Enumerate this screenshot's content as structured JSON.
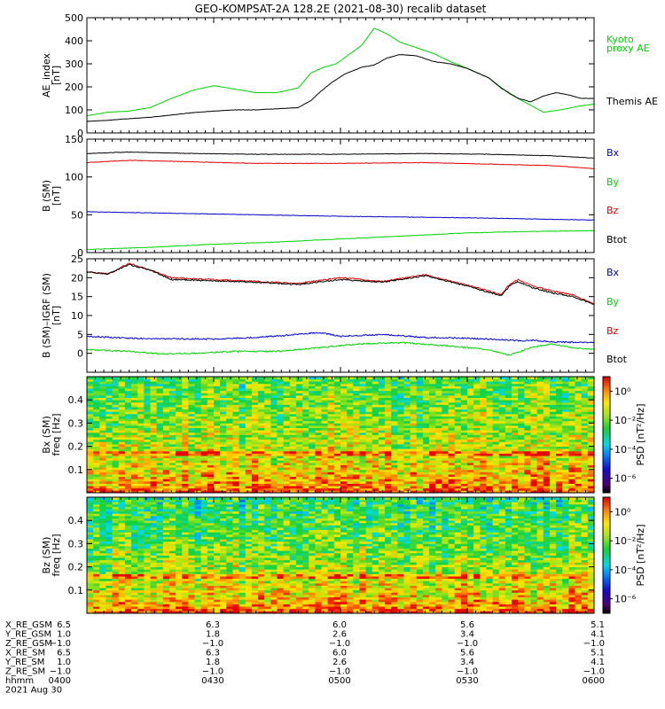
{
  "colors": {
    "axis": "#000000",
    "kyoto": "#00d200",
    "themis": "#000000",
    "bx": "#0000c8",
    "by": "#00d200",
    "bz": "#e00000",
    "btot": "#000000"
  },
  "figure": {
    "title": "GEO-KOMPSAT-2A 128.2E (2021-08-30) recalib dataset"
  },
  "chart_data": [
    {
      "type": "line",
      "title": "GEO-KOMPSAT-2A 128.2E (2021-08-30) recalib dataset",
      "ylabel": [
        "AE_index",
        "[nT]"
      ],
      "ylim": [
        0,
        500
      ],
      "yticks": [
        "0",
        "100",
        "200",
        "300",
        "400",
        "500"
      ],
      "xlim": [
        0,
        120
      ],
      "xunit": "minutes since 04:00 UT",
      "series": [
        {
          "name": "Kyoto proxy AE",
          "color": "#00d200",
          "legend": [
            "Kyoto",
            "proxy AE"
          ],
          "points": [
            [
              0,
              75
            ],
            [
              5,
              90
            ],
            [
              10,
              95
            ],
            [
              15,
              110
            ],
            [
              20,
              150
            ],
            [
              25,
              185
            ],
            [
              30,
              205
            ],
            [
              35,
              190
            ],
            [
              40,
              175
            ],
            [
              45,
              175
            ],
            [
              50,
              195
            ],
            [
              53,
              260
            ],
            [
              56,
              285
            ],
            [
              59,
              300
            ],
            [
              62,
              340
            ],
            [
              65,
              380
            ],
            [
              68,
              455
            ],
            [
              71,
              430
            ],
            [
              74,
              395
            ],
            [
              78,
              370
            ],
            [
              82,
              345
            ],
            [
              86,
              310
            ],
            [
              90,
              280
            ],
            [
              95,
              240
            ],
            [
              100,
              170
            ],
            [
              105,
              120
            ],
            [
              108,
              90
            ],
            [
              112,
              100
            ],
            [
              116,
              115
            ],
            [
              120,
              125
            ]
          ]
        },
        {
          "name": "Themis AE",
          "color": "#000000",
          "legend": [
            "Themis AE"
          ],
          "points": [
            [
              0,
              50
            ],
            [
              5,
              55
            ],
            [
              10,
              62
            ],
            [
              15,
              68
            ],
            [
              20,
              78
            ],
            [
              25,
              88
            ],
            [
              30,
              95
            ],
            [
              35,
              100
            ],
            [
              40,
              100
            ],
            [
              45,
              105
            ],
            [
              50,
              110
            ],
            [
              53,
              140
            ],
            [
              55,
              175
            ],
            [
              58,
              220
            ],
            [
              61,
              255
            ],
            [
              65,
              285
            ],
            [
              68,
              295
            ],
            [
              71,
              325
            ],
            [
              74,
              340
            ],
            [
              78,
              335
            ],
            [
              82,
              310
            ],
            [
              86,
              300
            ],
            [
              90,
              280
            ],
            [
              95,
              240
            ],
            [
              98,
              195
            ],
            [
              102,
              150
            ],
            [
              105,
              135
            ],
            [
              108,
              160
            ],
            [
              111,
              175
            ],
            [
              114,
              165
            ],
            [
              117,
              150
            ],
            [
              120,
              150
            ]
          ]
        }
      ]
    },
    {
      "type": "line",
      "ylabel": [
        "B (SM)",
        "[nT]"
      ],
      "ylim": [
        0,
        150
      ],
      "yticks": [
        "0",
        "50",
        "100",
        "150"
      ],
      "xlim": [
        0,
        120
      ],
      "series": [
        {
          "name": "Bx",
          "color": "#0000c8",
          "points": [
            [
              0,
              54
            ],
            [
              10,
              53
            ],
            [
              30,
              51
            ],
            [
              60,
              48
            ],
            [
              90,
              46
            ],
            [
              120,
              43
            ]
          ]
        },
        {
          "name": "By",
          "color": "#00d200",
          "points": [
            [
              0,
              4
            ],
            [
              15,
              7
            ],
            [
              30,
              11
            ],
            [
              45,
              14
            ],
            [
              60,
              18
            ],
            [
              75,
              22
            ],
            [
              90,
              26
            ],
            [
              105,
              28
            ],
            [
              120,
              29
            ]
          ]
        },
        {
          "name": "Bz",
          "color": "#e00000",
          "points": [
            [
              0,
              119
            ],
            [
              10,
              122
            ],
            [
              25,
              120
            ],
            [
              40,
              118
            ],
            [
              60,
              118
            ],
            [
              80,
              119
            ],
            [
              95,
              117
            ],
            [
              110,
              115
            ],
            [
              120,
              111
            ]
          ]
        },
        {
          "name": "Btot",
          "color": "#000000",
          "points": [
            [
              0,
              131
            ],
            [
              10,
              133
            ],
            [
              25,
              131
            ],
            [
              40,
              130
            ],
            [
              60,
              130
            ],
            [
              80,
              131
            ],
            [
              95,
              130
            ],
            [
              110,
              128
            ],
            [
              120,
              125
            ]
          ]
        }
      ],
      "legend": [
        "Bx",
        "By",
        "Bz",
        "Btot"
      ]
    },
    {
      "type": "line",
      "ylabel": [
        "B (SM)–IGRF (SM)",
        "[nT]"
      ],
      "ylim": [
        -5,
        25
      ],
      "yticks": [
        "0",
        "5",
        "10",
        "15",
        "20",
        "25"
      ],
      "xlim": [
        0,
        120
      ],
      "series": [
        {
          "name": "Bx",
          "color": "#0000c8",
          "points": [
            [
              0,
              4.5
            ],
            [
              10,
              4
            ],
            [
              20,
              3.8
            ],
            [
              30,
              3.8
            ],
            [
              40,
              4.2
            ],
            [
              50,
              5
            ],
            [
              55,
              5.5
            ],
            [
              60,
              4.5
            ],
            [
              70,
              5
            ],
            [
              80,
              4.2
            ],
            [
              90,
              4
            ],
            [
              100,
              3.5
            ],
            [
              103,
              3.3
            ],
            [
              105,
              3.5
            ],
            [
              110,
              3
            ],
            [
              120,
              2.8
            ]
          ]
        },
        {
          "name": "By",
          "color": "#00d200",
          "points": [
            [
              0,
              1
            ],
            [
              10,
              0.5
            ],
            [
              18,
              -0.2
            ],
            [
              25,
              0
            ],
            [
              35,
              0.5
            ],
            [
              45,
              0.5
            ],
            [
              55,
              1.5
            ],
            [
              65,
              2.5
            ],
            [
              75,
              2.8
            ],
            [
              85,
              2
            ],
            [
              95,
              1
            ],
            [
              100,
              -0.5
            ],
            [
              105,
              1.5
            ],
            [
              110,
              2.5
            ],
            [
              115,
              1.5
            ],
            [
              120,
              1
            ]
          ]
        },
        {
          "name": "Bz",
          "color": "#e00000",
          "points": [
            [
              0,
              21.5
            ],
            [
              5,
              21
            ],
            [
              10,
              23.8
            ],
            [
              15,
              22
            ],
            [
              20,
              20
            ],
            [
              30,
              19.5
            ],
            [
              40,
              19
            ],
            [
              50,
              18.5
            ],
            [
              60,
              20
            ],
            [
              70,
              19
            ],
            [
              80,
              20.8
            ],
            [
              90,
              18
            ],
            [
              95,
              16.5
            ],
            [
              98,
              15.5
            ],
            [
              100,
              18.2
            ],
            [
              102,
              19.5
            ],
            [
              105,
              18
            ],
            [
              110,
              16.5
            ],
            [
              115,
              15.5
            ],
            [
              120,
              13
            ]
          ]
        },
        {
          "name": "Btot",
          "color": "#000000",
          "points": [
            [
              0,
              21.5
            ],
            [
              5,
              21
            ],
            [
              10,
              23.5
            ],
            [
              15,
              22
            ],
            [
              20,
              19.5
            ],
            [
              30,
              19.2
            ],
            [
              40,
              18.8
            ],
            [
              50,
              18.2
            ],
            [
              60,
              19.5
            ],
            [
              70,
              18.8
            ],
            [
              80,
              20.5
            ],
            [
              90,
              17.8
            ],
            [
              95,
              16.2
            ],
            [
              98,
              15.2
            ],
            [
              100,
              17.8
            ],
            [
              102,
              19
            ],
            [
              105,
              17.5
            ],
            [
              110,
              16
            ],
            [
              115,
              15
            ],
            [
              120,
              13
            ]
          ]
        }
      ],
      "legend": [
        "Bx",
        "By",
        "Bz",
        "Btot"
      ]
    },
    {
      "type": "heatmap",
      "ylabel": [
        "Bx (SM)",
        "freq [Hz]"
      ],
      "ylim": [
        0,
        0.5
      ],
      "yticks": [
        "0.1",
        "0.2",
        "0.3",
        "0.4"
      ],
      "xlim": [
        0,
        120
      ],
      "colorbar": {
        "label": "PSD [nT²/Hz]",
        "ticks": [
          "10⁰",
          "10⁻²",
          "10⁻⁴",
          "10⁻⁶"
        ],
        "log_range": [
          -7,
          1
        ]
      },
      "time_bins": 80,
      "freq_bins": 50,
      "noise_seed": 7,
      "low_freq_log_psd": 1.2,
      "high_freq_log_psd": -2.3,
      "spectral_line_hz": 0.17
    },
    {
      "type": "heatmap",
      "ylabel": [
        "Bz (SM)",
        "freq [Hz]"
      ],
      "ylim": [
        0,
        0.5
      ],
      "yticks": [
        "0.1",
        "0.2",
        "0.3",
        "0.4"
      ],
      "xlim": [
        0,
        120
      ],
      "colorbar": {
        "label": "PSD [nT²/Hz]",
        "ticks": [
          "10⁰",
          "10⁻²",
          "10⁻⁴",
          "10⁻⁶"
        ],
        "log_range": [
          -7,
          1
        ]
      },
      "time_bins": 80,
      "freq_bins": 50,
      "noise_seed": 11,
      "low_freq_log_psd": 1.4,
      "high_freq_log_psd": -2.8,
      "spectral_line_hz": 0.16
    }
  ],
  "ephemeris": {
    "rows": [
      {
        "label": "X_RE_GSM",
        "values": [
          "6.5",
          "6.3",
          "6.0",
          "5.6",
          "5.1"
        ]
      },
      {
        "label": "Y_RE_GSM",
        "values": [
          "1.0",
          "1.8",
          "2.6",
          "3.4",
          "4.1"
        ]
      },
      {
        "label": "Z_RE_GSM",
        "values": [
          "−1.0",
          "−1.0",
          "−1.0",
          "−1.0",
          "−1.0"
        ]
      },
      {
        "label": "X_RE_SM",
        "values": [
          "6.5",
          "6.3",
          "6.0",
          "5.6",
          "5.1"
        ]
      },
      {
        "label": "Y_RE_SM",
        "values": [
          "1.0",
          "1.8",
          "2.6",
          "3.4",
          "4.1"
        ]
      },
      {
        "label": "Z_RE_SM",
        "values": [
          "−1.0",
          "−1.0",
          "−1.0",
          "−1.0",
          "−1.0"
        ]
      },
      {
        "label": "hhmm",
        "values": [
          "0400",
          "0430",
          "0500",
          "0530",
          "0600"
        ]
      }
    ],
    "date": "2021 Aug 30"
  }
}
